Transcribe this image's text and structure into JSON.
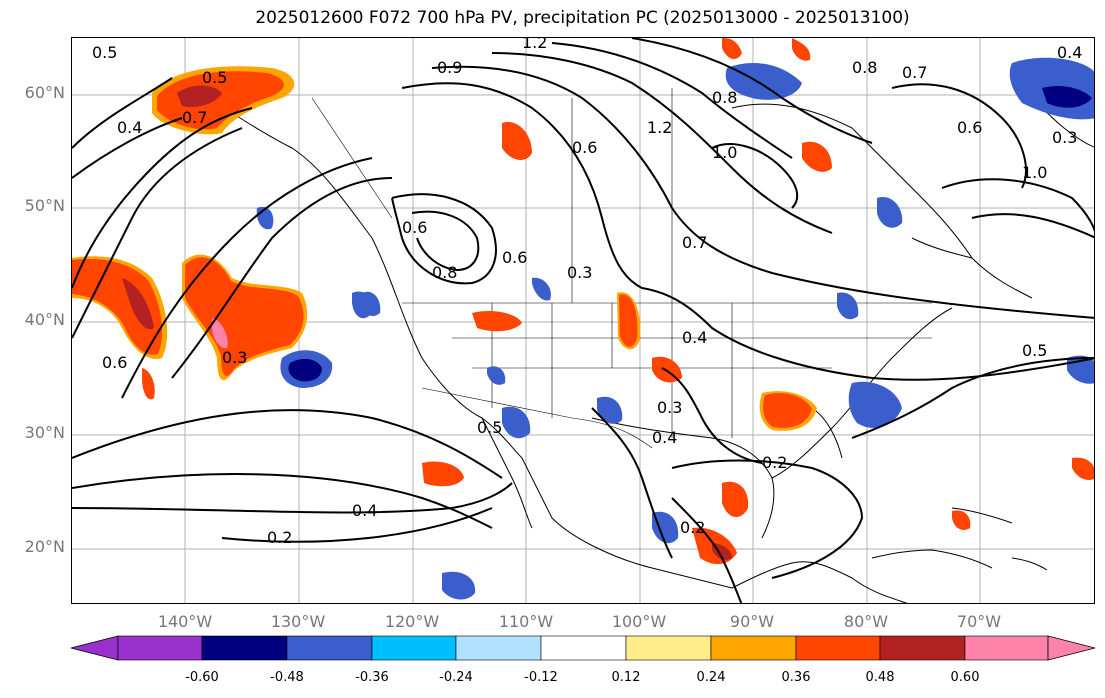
{
  "title": "2025012600 F072 700 hPa PV, precipitation PC (2025013000 - 2025013100)",
  "lat_labels": [
    "60°N",
    "50°N",
    "40°N",
    "30°N",
    "20°N"
  ],
  "lon_labels": [
    "140°W",
    "130°W",
    "120°W",
    "110°W",
    "100°W",
    "90°W",
    "80°W",
    "70°W"
  ],
  "colorbar": {
    "ticks": [
      "-0.60",
      "-0.48",
      "-0.36",
      "-0.24",
      "-0.12",
      "0.12",
      "0.24",
      "0.36",
      "0.48",
      "0.60"
    ],
    "colors": [
      "#9932cc",
      "#000080",
      "#3a5fcd",
      "#00bfff",
      "#b0e2ff",
      "#ffffff",
      "#ffec8b",
      "#ffa500",
      "#ff4500",
      "#b22222",
      "#ff82ab"
    ]
  },
  "contour_labels": [
    "0.5",
    "0.4",
    "0.5",
    "0.7",
    "0.6",
    "0.3",
    "0.6",
    "0.9",
    "1.2",
    "0.8",
    "0.6",
    "1.2",
    "1.0",
    "0.8",
    "0.7",
    "0.6",
    "0.4",
    "0.3",
    "1.0",
    "0.7",
    "0.8",
    "0.6",
    "0.3",
    "0.4",
    "0.5",
    "0.3",
    "0.4",
    "0.5",
    "0.2",
    "0.4",
    "0.2",
    "0.2"
  ],
  "precip_colors": {
    "strong_positive": "#ff4500",
    "very_strong_positive": "#b22222",
    "extreme_positive": "#ff82ab",
    "moderate_positive": "#ffa500",
    "weak_positive": "#ffec8b",
    "negative": "#3a5fcd",
    "strong_negative": "#000080",
    "weak_negative": "#00bfff"
  }
}
